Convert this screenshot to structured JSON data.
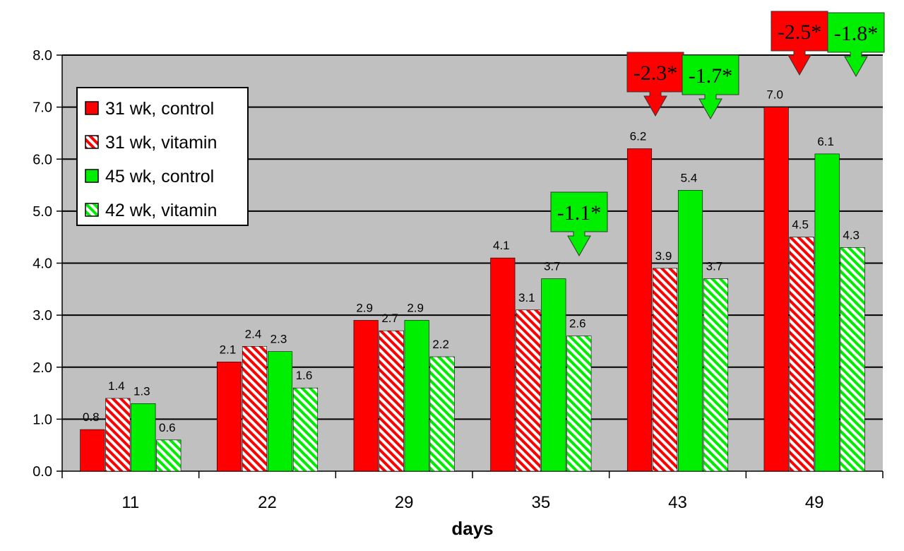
{
  "chart_data": {
    "type": "bar",
    "title": "",
    "xlabel": "days",
    "ylabel": "",
    "ylim": [
      0,
      8
    ],
    "yticks": [
      "0.0",
      "1.0",
      "2.0",
      "3.0",
      "4.0",
      "5.0",
      "6.0",
      "7.0",
      "8.0"
    ],
    "grid": true,
    "legend_position": "top-left",
    "categories": [
      "11",
      "22",
      "29",
      "35",
      "43",
      "49"
    ],
    "series": [
      {
        "name": "31 wk, control",
        "color": "#ff0000",
        "pattern": "solid",
        "values": [
          0.8,
          2.1,
          2.9,
          4.1,
          6.2,
          7.0
        ],
        "labels": [
          "0.8",
          "2.1",
          "2.9",
          "4.1",
          "6.2",
          "7.0"
        ]
      },
      {
        "name": "31 wk, vitamin",
        "color": "#ff0000",
        "pattern": "hatched",
        "values": [
          1.4,
          2.4,
          2.7,
          3.1,
          3.9,
          4.5
        ],
        "labels": [
          "1.4",
          "2.4",
          "2.7",
          "3.1",
          "3.9",
          "4.5"
        ]
      },
      {
        "name": "45 wk, control",
        "color": "#00ee00",
        "pattern": "solid",
        "values": [
          1.3,
          2.3,
          2.9,
          3.7,
          5.4,
          6.1
        ],
        "labels": [
          "1.3",
          "2.3",
          "2.9",
          "3.7",
          "5.4",
          "6.1"
        ]
      },
      {
        "name": "42 wk, vitamin",
        "color": "#00ee00",
        "pattern": "hatched",
        "values": [
          0.6,
          1.6,
          2.2,
          2.6,
          3.7,
          4.3
        ],
        "labels": [
          "0.6",
          "1.6",
          "2.2",
          "2.6",
          "3.7",
          "4.3"
        ]
      }
    ],
    "annotations": [
      {
        "text": "-1.1*",
        "category": "35",
        "color": "#00ee00"
      },
      {
        "text": "-2.3*",
        "category": "43",
        "color": "#ff0000"
      },
      {
        "text": "-1.7*",
        "category": "43",
        "color": "#00ee00"
      },
      {
        "text": "-2.5*",
        "category": "49",
        "color": "#ff0000"
      },
      {
        "text": "-1.8*",
        "category": "49",
        "color": "#00ee00"
      }
    ]
  }
}
